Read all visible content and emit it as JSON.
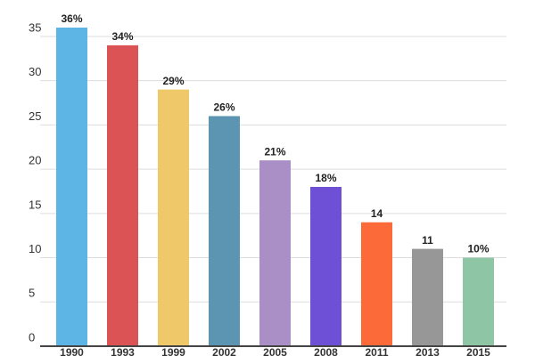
{
  "chart_data": {
    "type": "bar",
    "categories": [
      "1990",
      "1993",
      "1999",
      "2002",
      "2005",
      "2008",
      "2011",
      "2013",
      "2015"
    ],
    "values": [
      36,
      34,
      29,
      26,
      21,
      18,
      14,
      11,
      10
    ],
    "value_labels": [
      "36%",
      "34%",
      "29%",
      "26%",
      "21%",
      "18%",
      "14",
      "11",
      "10%"
    ],
    "colors": [
      "#5db5e5",
      "#dc5356",
      "#efc86a",
      "#5b95b1",
      "#a98fc6",
      "#6e50d6",
      "#fd6a3a",
      "#979797",
      "#8dc5a5"
    ],
    "ylim": [
      0,
      36
    ],
    "yticks": [
      0,
      5,
      10,
      15,
      20,
      25,
      30,
      35
    ],
    "grid": true
  }
}
